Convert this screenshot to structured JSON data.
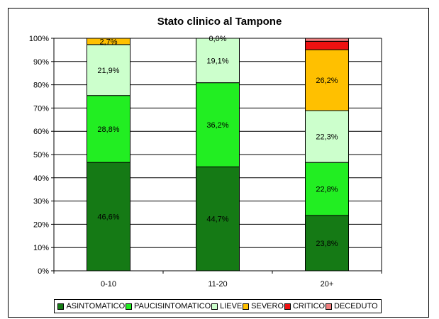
{
  "chart_data": {
    "type": "bar",
    "stacked": true,
    "title": "Stato clinico al Tampone",
    "categories": [
      "0-10",
      "11-20",
      "20+"
    ],
    "series": [
      {
        "name": "ASINTOMATICO",
        "color": "#157a15",
        "values": [
          46.6,
          44.7,
          23.8
        ],
        "labels": [
          "46,6%",
          "44,7%",
          "23,8%"
        ]
      },
      {
        "name": "PAUCISINTOMATICO",
        "color": "#22ee22",
        "values": [
          28.8,
          36.2,
          22.8
        ],
        "labels": [
          "28,8%",
          "36,2%",
          "22,8%"
        ]
      },
      {
        "name": "LIEVE",
        "color": "#ccffcc",
        "values": [
          21.9,
          19.1,
          22.3
        ],
        "labels": [
          "21,9%",
          "19,1%",
          "22,3%"
        ]
      },
      {
        "name": "SEVERO",
        "color": "#ffc000",
        "values": [
          2.7,
          0.0,
          26.2
        ],
        "labels": [
          "2,7%",
          "0,0%",
          "26,2%"
        ]
      },
      {
        "name": "CRITICO",
        "color": "#ee1111",
        "values": [
          0,
          0,
          3.6
        ],
        "labels": [
          "",
          "",
          ""
        ]
      },
      {
        "name": "DECEDUTO",
        "color": "#f08080",
        "values": [
          0,
          0,
          1.3
        ],
        "labels": [
          "",
          "",
          ""
        ]
      }
    ],
    "y_ticks": [
      "0%",
      "10%",
      "20%",
      "30%",
      "40%",
      "50%",
      "60%",
      "70%",
      "80%",
      "90%",
      "100%"
    ],
    "ylim": [
      0,
      100
    ],
    "legend_position": "bottom",
    "grid": true
  }
}
